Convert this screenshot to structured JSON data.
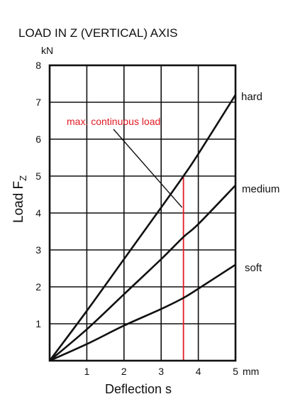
{
  "chart_data": {
    "type": "line",
    "title": "LOAD IN Z (VERTICAL) AXIS",
    "y_unit": "kN",
    "x_unit": "mm",
    "xlabel": "Deflection s",
    "ylabel": "Load F",
    "ylabel_subscript": "Z",
    "xlim": [
      0,
      5
    ],
    "ylim": [
      0,
      8
    ],
    "x_ticks": [
      "1",
      "2",
      "3",
      "4",
      "5"
    ],
    "y_ticks": [
      "1",
      "2",
      "3",
      "4",
      "5",
      "6",
      "7",
      "8"
    ],
    "grid": true,
    "series": [
      {
        "name": "hard",
        "x": [
          0,
          1,
          2,
          3,
          3.6,
          4,
          5
        ],
        "y": [
          0,
          1.35,
          2.75,
          4.15,
          5.0,
          5.6,
          7.2
        ]
      },
      {
        "name": "medium",
        "x": [
          0,
          1,
          2,
          3,
          3.6,
          4,
          5
        ],
        "y": [
          0,
          0.85,
          1.8,
          2.75,
          3.35,
          3.7,
          4.75
        ]
      },
      {
        "name": "soft",
        "x": [
          0,
          1,
          2,
          3,
          3.6,
          4,
          5
        ],
        "y": [
          0,
          0.45,
          0.95,
          1.4,
          1.7,
          1.95,
          2.6
        ]
      }
    ],
    "annotation": {
      "text": "max. continuous load",
      "x": 3.6,
      "color": "#e01b24"
    }
  }
}
